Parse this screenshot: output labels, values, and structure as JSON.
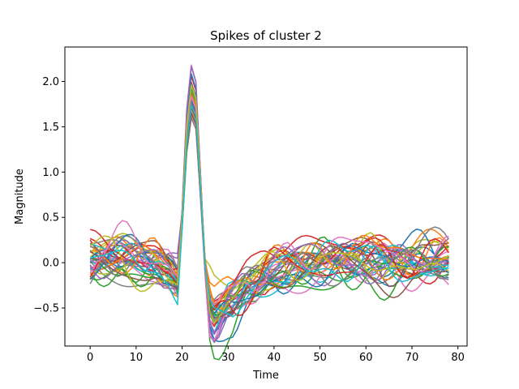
{
  "chart_data": {
    "type": "line",
    "title": "Spikes of cluster 2",
    "xlabel": "Time",
    "ylabel": "Magnitude",
    "xlim": [
      -5.5,
      82
    ],
    "ylim": [
      -0.92,
      2.38
    ],
    "x_ticks": [
      0,
      10,
      20,
      30,
      40,
      50,
      60,
      70,
      80
    ],
    "x_tick_labels": [
      "0",
      "10",
      "20",
      "30",
      "40",
      "50",
      "60",
      "70",
      "80"
    ],
    "y_ticks": [
      -0.5,
      0.0,
      0.5,
      1.0,
      1.5,
      2.0
    ],
    "y_tick_labels": [
      "−0.5",
      "0.0",
      "0.5",
      "1.0",
      "1.5",
      "2.0"
    ],
    "grid": false,
    "legend": "none",
    "n_samples": 79,
    "template": {
      "x": [
        0,
        8,
        14,
        17,
        19,
        20,
        21,
        22,
        23,
        24,
        25,
        26,
        27,
        28,
        30,
        35,
        40,
        50,
        60,
        78
      ],
      "y": [
        0.0,
        0.02,
        0.0,
        -0.1,
        -0.2,
        0.5,
        1.5,
        1.95,
        1.8,
        0.9,
        -0.05,
        -0.52,
        -0.62,
        -0.58,
        -0.45,
        -0.25,
        -0.12,
        -0.03,
        0.0,
        0.02
      ]
    },
    "series_colors": [
      "#1f77b4",
      "#ff7f0e",
      "#2ca02c",
      "#d62728",
      "#9467bd",
      "#8c564b",
      "#e377c2",
      "#7f7f7f",
      "#bcbd22",
      "#17becf"
    ],
    "series": [
      {
        "peak": 1.75,
        "trough": -0.62,
        "offset": 0.02,
        "noise": [
          0.12,
          -0.08,
          0.1,
          0.06,
          -0.1,
          0.08
        ]
      },
      {
        "peak": 1.95,
        "trough": -0.55,
        "offset": 0.05,
        "noise": [
          -0.1,
          0.15,
          -0.06,
          0.1,
          0.05,
          -0.12
        ]
      },
      {
        "peak": 1.65,
        "trough": -0.7,
        "offset": -0.03,
        "noise": [
          0.08,
          0.1,
          -0.12,
          -0.05,
          0.12,
          0.07
        ]
      },
      {
        "peak": 2.0,
        "trough": -0.78,
        "offset": 0.08,
        "noise": [
          0.15,
          -0.1,
          0.06,
          0.12,
          -0.08,
          0.1
        ]
      },
      {
        "peak": 1.85,
        "trough": -0.6,
        "offset": 0.0,
        "noise": [
          -0.12,
          -0.06,
          0.1,
          -0.1,
          0.09,
          -0.05
        ]
      },
      {
        "peak": 1.7,
        "trough": -0.66,
        "offset": 0.1,
        "noise": [
          0.1,
          0.12,
          0.05,
          -0.08,
          -0.1,
          0.12
        ]
      },
      {
        "peak": 2.22,
        "trough": -0.72,
        "offset": 0.04,
        "noise": [
          -0.08,
          0.06,
          0.14,
          0.08,
          0.1,
          -0.1
        ]
      },
      {
        "peak": 1.8,
        "trough": -0.58,
        "offset": -0.05,
        "noise": [
          0.06,
          -0.12,
          -0.08,
          0.14,
          -0.06,
          0.09
        ]
      },
      {
        "peak": 1.6,
        "trough": -0.5,
        "offset": 0.12,
        "noise": [
          -0.14,
          0.08,
          0.12,
          -0.06,
          0.14,
          0.06
        ]
      },
      {
        "peak": 2.12,
        "trough": -0.68,
        "offset": 0.02,
        "noise": [
          0.1,
          -0.06,
          -0.1,
          0.1,
          0.06,
          -0.14
        ]
      },
      {
        "peak": 1.9,
        "trough": -0.64,
        "offset": -0.08,
        "noise": [
          -0.06,
          0.14,
          0.08,
          -0.12,
          -0.1,
          0.08
        ]
      },
      {
        "peak": 1.78,
        "trough": -0.56,
        "offset": 0.06,
        "noise": [
          0.14,
          0.05,
          -0.14,
          0.06,
          0.12,
          0.1
        ]
      },
      {
        "peak": 1.68,
        "trough": -0.74,
        "offset": -0.1,
        "noise": [
          0.05,
          -0.14,
          0.1,
          0.12,
          -0.14,
          -0.06
        ]
      },
      {
        "peak": 2.05,
        "trough": -0.6,
        "offset": 0.15,
        "noise": [
          -0.1,
          0.1,
          -0.05,
          -0.14,
          0.08,
          0.14
        ]
      },
      {
        "peak": 1.82,
        "trough": -0.52,
        "offset": -0.02,
        "noise": [
          0.12,
          0.12,
          0.12,
          0.05,
          -0.05,
          -0.1
        ]
      },
      {
        "peak": 1.72,
        "trough": -0.66,
        "offset": 0.09,
        "noise": [
          -0.12,
          -0.1,
          -0.1,
          0.1,
          0.14,
          0.05
        ]
      },
      {
        "peak": 1.98,
        "trough": -0.7,
        "offset": -0.06,
        "noise": [
          0.08,
          0.08,
          0.14,
          -0.1,
          -0.12,
          0.12
        ]
      },
      {
        "peak": 1.62,
        "trough": -0.48,
        "offset": 0.03,
        "noise": [
          -0.05,
          -0.12,
          -0.06,
          0.14,
          0.1,
          -0.08
        ]
      },
      {
        "peak": 1.88,
        "trough": -0.62,
        "offset": 0.11,
        "noise": [
          0.1,
          0.06,
          0.08,
          -0.06,
          -0.14,
          0.06
        ]
      },
      {
        "peak": 1.76,
        "trough": -0.58,
        "offset": -0.04,
        "noise": [
          -0.08,
          0.12,
          -0.12,
          0.08,
          0.06,
          -0.12
        ]
      },
      {
        "peak": 2.08,
        "trough": -0.76,
        "offset": 0.01,
        "noise": [
          0.14,
          -0.08,
          0.06,
          -0.12,
          0.12,
          0.1
        ]
      },
      {
        "peak": 1.66,
        "trough": -0.54,
        "offset": 0.07,
        "noise": [
          -0.14,
          0.14,
          0.1,
          0.06,
          -0.06,
          -0.05
        ]
      },
      {
        "peak": 1.92,
        "trough": -0.64,
        "offset": -0.07,
        "noise": [
          0.06,
          -0.05,
          -0.14,
          -0.1,
          0.14,
          0.08
        ]
      },
      {
        "peak": 1.84,
        "trough": -0.6,
        "offset": 0.13,
        "noise": [
          -0.06,
          0.1,
          0.05,
          0.12,
          -0.1,
          0.14
        ]
      },
      {
        "peak": 1.74,
        "trough": -0.68,
        "offset": -0.01,
        "noise": [
          0.12,
          -0.1,
          0.12,
          -0.08,
          0.08,
          -0.1
        ]
      },
      {
        "peak": 2.0,
        "trough": -0.56,
        "offset": 0.05,
        "noise": [
          -0.1,
          0.06,
          -0.08,
          0.14,
          -0.12,
          0.06
        ]
      },
      {
        "peak": 1.7,
        "trough": -0.62,
        "offset": -0.09,
        "noise": [
          0.1,
          0.14,
          0.1,
          -0.14,
          0.05,
          0.12
        ]
      },
      {
        "peak": 1.86,
        "trough": -0.66,
        "offset": 0.08,
        "noise": [
          -0.12,
          -0.06,
          0.14,
          0.1,
          0.1,
          -0.14
        ]
      },
      {
        "peak": 1.64,
        "trough": -0.5,
        "offset": 0.0,
        "noise": [
          0.08,
          0.1,
          -0.1,
          0.05,
          -0.14,
          0.1
        ]
      },
      {
        "peak": 1.96,
        "trough": -0.72,
        "offset": 0.04,
        "noise": [
          -0.05,
          -0.14,
          0.06,
          -0.06,
          0.12,
          -0.06
        ]
      },
      {
        "peak": 1.8,
        "trough": -0.6,
        "offset": -0.03,
        "noise": [
          0.14,
          0.08,
          -0.06,
          0.12,
          -0.08,
          0.14
        ]
      },
      {
        "peak": 1.78,
        "trough": -0.64,
        "offset": 0.1,
        "noise": [
          -0.1,
          0.12,
          0.12,
          -0.1,
          0.14,
          0.05
        ]
      },
      {
        "peak": 1.9,
        "trough": -0.58,
        "offset": -0.06,
        "noise": [
          0.06,
          -0.1,
          0.08,
          0.14,
          -0.05,
          -0.12
        ]
      },
      {
        "peak": 1.72,
        "trough": -0.7,
        "offset": 0.02,
        "noise": [
          -0.14,
          0.05,
          -0.14,
          -0.05,
          0.1,
          0.1
        ]
      },
      {
        "peak": 2.15,
        "trough": -0.66,
        "offset": 0.06,
        "noise": [
          0.1,
          -0.12,
          0.1,
          0.08,
          -0.12,
          0.06
        ]
      },
      {
        "peak": 1.68,
        "trough": -0.54,
        "offset": -0.08,
        "noise": [
          -0.08,
          0.14,
          -0.05,
          -0.12,
          0.06,
          -0.14
        ]
      },
      {
        "peak": 1.84,
        "trough": -0.62,
        "offset": 0.12,
        "noise": [
          0.12,
          -0.06,
          0.14,
          0.1,
          0.12,
          0.08
        ]
      },
      {
        "peak": 1.76,
        "trough": -0.6,
        "offset": 0.0,
        "noise": [
          -0.06,
          0.08,
          -0.12,
          0.06,
          -0.1,
          0.12
        ]
      },
      {
        "peak": 1.94,
        "trough": -0.68,
        "offset": 0.03,
        "noise": [
          0.14,
          0.12,
          0.06,
          -0.14,
          0.08,
          -0.08
        ]
      },
      {
        "peak": 1.8,
        "trough": -0.56,
        "offset": -0.05,
        "noise": [
          -0.12,
          -0.08,
          0.1,
          0.12,
          -0.14,
          0.1
        ]
      }
    ]
  }
}
